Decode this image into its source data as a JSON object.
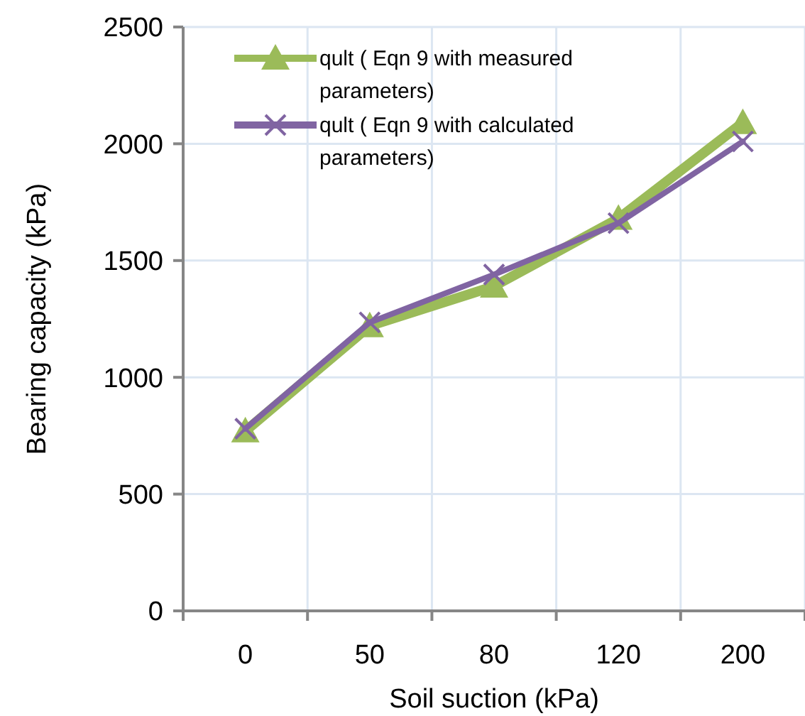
{
  "chart_data": {
    "type": "line",
    "xlabel": "Soil suction (kPa)",
    "ylabel": "Bearing capacity (kPa)",
    "categories": [
      "0",
      "50",
      "80",
      "120",
      "200"
    ],
    "series": [
      {
        "name": "qult ( Eqn 9 with measured parameters)",
        "color": "#9bbb59",
        "marker": "triangle",
        "values": [
          770,
          1220,
          1390,
          1680,
          2090
        ]
      },
      {
        "name": "qult ( Eqn 9 with calculated parameters)",
        "color": "#8064a2",
        "marker": "cross",
        "values": [
          780,
          1235,
          1440,
          1660,
          2010
        ]
      }
    ],
    "ylim": [
      0,
      2500
    ],
    "yticks": [
      0,
      500,
      1000,
      1500,
      2000,
      2500
    ],
    "grid": true,
    "legend": "top left",
    "line_style": "solid"
  }
}
